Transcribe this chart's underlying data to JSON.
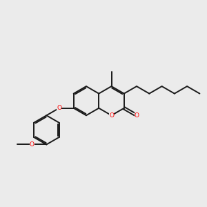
{
  "bg_color": "#ebebeb",
  "bond_color": "#1a1a1a",
  "O_color": "#ff0000",
  "lw": 1.4,
  "dbl_off": 0.018,
  "shrink": 0.018,
  "figsize": [
    3.0,
    3.0
  ],
  "dpi": 100,
  "xlim": [
    -1.55,
    1.55
  ],
  "ylim": [
    -0.85,
    0.85
  ]
}
